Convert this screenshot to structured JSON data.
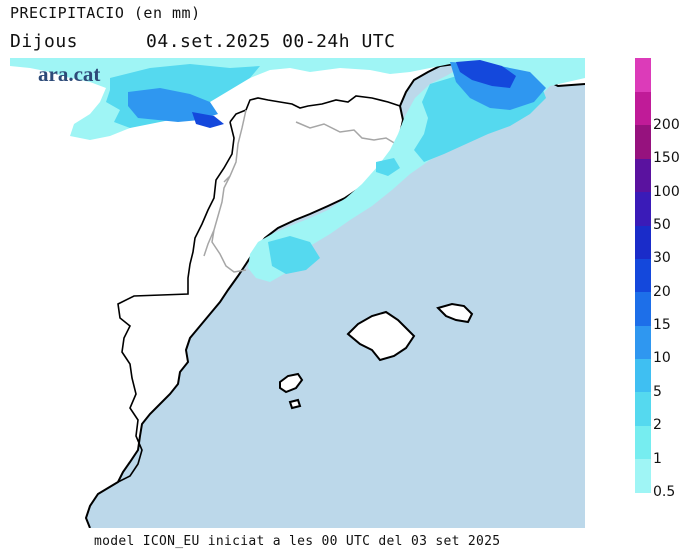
{
  "header": {
    "title": "PRECIPITACIO (en mm)",
    "subtitle": "Dijous      04.set.2025 00-24h UTC"
  },
  "brand": {
    "logo_text": "ara.cat"
  },
  "colors": {
    "sea": "#bcd8ea",
    "land": "#ffffff",
    "coast": "#000000",
    "border": "#a6a6a6"
  },
  "legend": {
    "items": [
      {
        "label": "0.5",
        "color": "#9ff5f5"
      },
      {
        "label": "1",
        "color": "#76edf0"
      },
      {
        "label": "2",
        "color": "#55d9ef"
      },
      {
        "label": "5",
        "color": "#3fbff2"
      },
      {
        "label": "10",
        "color": "#2f97f0"
      },
      {
        "label": "15",
        "color": "#1d6fe9"
      },
      {
        "label": "20",
        "color": "#1448dc"
      },
      {
        "label": "30",
        "color": "#1a2cc9"
      },
      {
        "label": "50",
        "color": "#3a1bb8"
      },
      {
        "label": "100",
        "color": "#5a129f"
      },
      {
        "label": "150",
        "color": "#96127e"
      },
      {
        "label": "200",
        "color": "#c01b98"
      },
      {
        "label": "",
        "color": "#dc3bb9"
      }
    ]
  },
  "footer": {
    "text": "model ICON_EU iniciat a les 00 UTC del 03 set 2025"
  }
}
